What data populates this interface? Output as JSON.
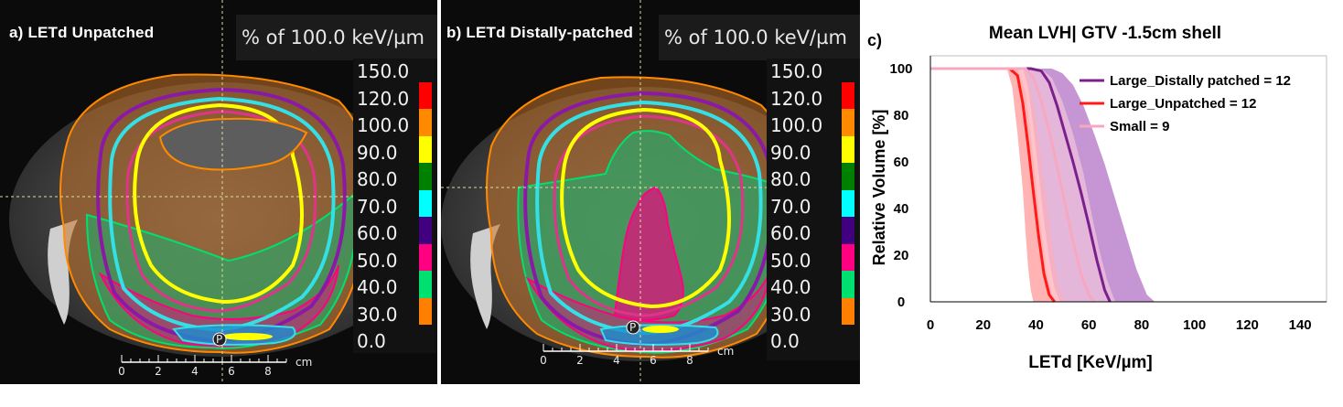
{
  "panel_a": {
    "label": "a)  LETd Unpatched",
    "unit": "% of 100.0 keV/µm",
    "legend": [
      {
        "value": "150.0",
        "color": ""
      },
      {
        "value": "120.0",
        "color": "#ff0000"
      },
      {
        "value": "100.0",
        "color": "#ff8a00"
      },
      {
        "value": "90.0",
        "color": "#ffff00"
      },
      {
        "value": "80.0",
        "color": "#008000"
      },
      {
        "value": "70.0",
        "color": "#00ffff"
      },
      {
        "value": "60.0",
        "color": "#400080"
      },
      {
        "value": "50.0",
        "color": "#ff0080"
      },
      {
        "value": "40.0",
        "color": "#00e070"
      },
      {
        "value": "30.0",
        "color": "#ff8000"
      },
      {
        "value": "0.0",
        "color": ""
      }
    ],
    "scale": {
      "ticks": [
        "0",
        "2",
        "4",
        "6",
        "8"
      ],
      "unit": "cm"
    },
    "marker": "P"
  },
  "panel_b": {
    "label": "b)  LETd Distally-patched",
    "unit": "% of 100.0 keV/µm",
    "legend": [
      {
        "value": "150.0",
        "color": ""
      },
      {
        "value": "120.0",
        "color": "#ff0000"
      },
      {
        "value": "100.0",
        "color": "#ff8a00"
      },
      {
        "value": "90.0",
        "color": "#ffff00"
      },
      {
        "value": "80.0",
        "color": "#008000"
      },
      {
        "value": "70.0",
        "color": "#00ffff"
      },
      {
        "value": "60.0",
        "color": "#400080"
      },
      {
        "value": "50.0",
        "color": "#ff0080"
      },
      {
        "value": "40.0",
        "color": "#00e070"
      },
      {
        "value": "30.0",
        "color": "#ff8000"
      },
      {
        "value": "0.0",
        "color": ""
      }
    ],
    "scale": {
      "ticks": [
        "0",
        "2",
        "4",
        "6",
        "8"
      ],
      "unit": "cm"
    },
    "marker": "P"
  },
  "chart_data": {
    "type": "line",
    "panel_label": "c)",
    "title": "Mean LVH| GTV -1.5cm shell",
    "xlabel": "LETd [KeV/µm]",
    "ylabel": "Relative Volume [%]",
    "xlim": [
      0,
      150
    ],
    "ylim": [
      0,
      100
    ],
    "xticks": [
      0,
      20,
      40,
      60,
      80,
      100,
      120,
      140
    ],
    "yticks": [
      0,
      20,
      40,
      60,
      80,
      100
    ],
    "grid": false,
    "legend_position": "top-right",
    "series": [
      {
        "name": "Large_Distally patched = 12",
        "color": "#7b1f8c",
        "band_color": "#a050b8",
        "mean": [
          [
            0,
            100
          ],
          [
            38,
            100
          ],
          [
            42,
            99
          ],
          [
            45,
            94
          ],
          [
            48,
            84
          ],
          [
            51,
            72
          ],
          [
            54,
            60
          ],
          [
            57,
            47
          ],
          [
            60,
            33
          ],
          [
            63,
            18
          ],
          [
            66,
            5
          ],
          [
            68,
            0
          ]
        ],
        "upper": [
          [
            0,
            100
          ],
          [
            46,
            100
          ],
          [
            50,
            98
          ],
          [
            54,
            93
          ],
          [
            58,
            84
          ],
          [
            62,
            72
          ],
          [
            66,
            59
          ],
          [
            70,
            44
          ],
          [
            74,
            29
          ],
          [
            78,
            14
          ],
          [
            82,
            3
          ],
          [
            85,
            0
          ]
        ],
        "lower": [
          [
            0,
            100
          ],
          [
            35,
            100
          ],
          [
            37,
            92
          ],
          [
            39,
            75
          ],
          [
            41,
            55
          ],
          [
            43,
            35
          ],
          [
            45,
            18
          ],
          [
            47,
            6
          ],
          [
            49,
            0
          ]
        ]
      },
      {
        "name": "Large_Unpatched = 12",
        "color": "#ff1a1a",
        "band_color": "#ff8080",
        "mean": [
          [
            0,
            100
          ],
          [
            30,
            100
          ],
          [
            33,
            97
          ],
          [
            35,
            85
          ],
          [
            37,
            67
          ],
          [
            39,
            47
          ],
          [
            41,
            28
          ],
          [
            43,
            12
          ],
          [
            45,
            3
          ],
          [
            47,
            0
          ]
        ],
        "upper": [
          [
            0,
            100
          ],
          [
            34,
            100
          ],
          [
            37,
            97
          ],
          [
            39,
            86
          ],
          [
            41,
            70
          ],
          [
            43,
            52
          ],
          [
            45,
            34
          ],
          [
            47,
            17
          ],
          [
            49,
            5
          ],
          [
            51,
            0
          ]
        ],
        "lower": [
          [
            0,
            100
          ],
          [
            29,
            100
          ],
          [
            31,
            92
          ],
          [
            33,
            72
          ],
          [
            35,
            48
          ],
          [
            36,
            30
          ],
          [
            37,
            15
          ],
          [
            38,
            5
          ],
          [
            39,
            0
          ]
        ]
      },
      {
        "name": "Small = 9",
        "color": "#f7a8be",
        "band_color": "#fbd2de",
        "mean": [
          [
            0,
            100
          ],
          [
            36,
            100
          ],
          [
            39,
            96
          ],
          [
            42,
            86
          ],
          [
            45,
            73
          ],
          [
            48,
            58
          ],
          [
            51,
            42
          ],
          [
            54,
            26
          ],
          [
            57,
            12
          ],
          [
            60,
            3
          ],
          [
            62,
            0
          ]
        ],
        "upper": [
          [
            0,
            100
          ],
          [
            42,
            100
          ],
          [
            46,
            96
          ],
          [
            50,
            86
          ],
          [
            54,
            72
          ],
          [
            58,
            55
          ],
          [
            61,
            38
          ],
          [
            64,
            22
          ],
          [
            67,
            9
          ],
          [
            70,
            0
          ]
        ],
        "lower": [
          [
            0,
            100
          ],
          [
            33,
            100
          ],
          [
            36,
            90
          ],
          [
            38,
            72
          ],
          [
            40,
            50
          ],
          [
            42,
            30
          ],
          [
            44,
            13
          ],
          [
            46,
            3
          ],
          [
            48,
            0
          ]
        ]
      }
    ]
  }
}
